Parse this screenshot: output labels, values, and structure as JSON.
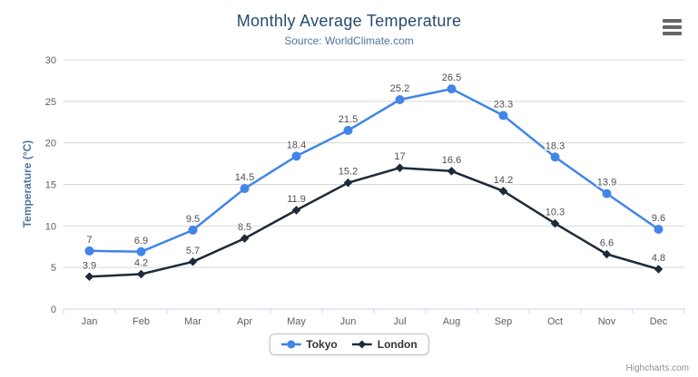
{
  "chart_data": {
    "type": "line",
    "title": "Monthly Average Temperature",
    "subtitle": "Source: WorldClimate.com",
    "categories": [
      "Jan",
      "Feb",
      "Mar",
      "Apr",
      "May",
      "Jun",
      "Jul",
      "Aug",
      "Sep",
      "Oct",
      "Nov",
      "Dec"
    ],
    "series": [
      {
        "name": "Tokyo",
        "color": "#4285E8",
        "marker": "circle",
        "values": [
          7,
          6.9,
          9.5,
          14.5,
          18.4,
          21.5,
          25.2,
          26.5,
          23.3,
          18.3,
          13.9,
          9.6
        ]
      },
      {
        "name": "London",
        "color": "#1C2B3A",
        "marker": "diamond",
        "values": [
          3.9,
          4.2,
          5.7,
          8.5,
          11.9,
          15.2,
          17,
          16.6,
          14.2,
          10.3,
          6.6,
          4.8
        ]
      }
    ],
    "xlabel": "",
    "ylabel": "Temperature (°C)",
    "ylim": [
      0,
      30
    ],
    "ytick_step": 5,
    "grid": true,
    "legend_position": "bottom",
    "data_labels_shown": true
  },
  "credits": {
    "label": "Highcharts.com"
  },
  "export_menu": {
    "icon": "hamburger-icon"
  },
  "colors": {
    "title": "#274B6D",
    "subtitle": "#4D759E",
    "axis_title": "#4D759E",
    "axis_labels": "#606060",
    "gridline": "#D8D8D8",
    "axis_line": "#CCD6EB",
    "data_label": "#4F4F4F",
    "legend_text": "#333333",
    "credits": "#909090",
    "menu_icon": "#666666"
  }
}
